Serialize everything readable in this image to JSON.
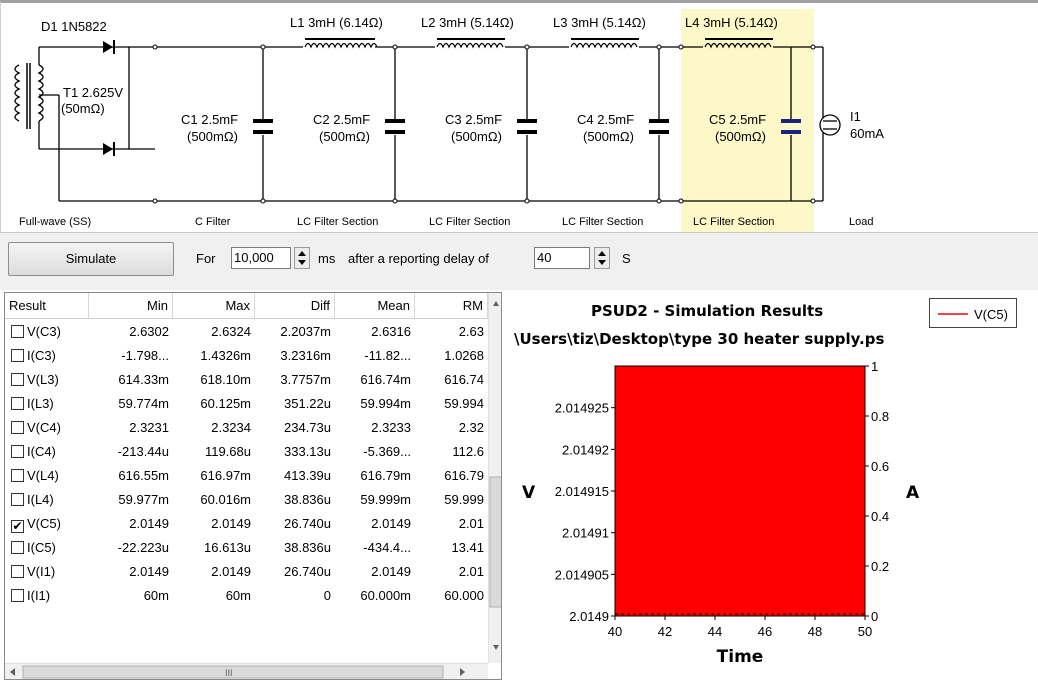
{
  "circuit": {
    "components": {
      "d1": "D1 1N5822",
      "t1_line1": "T1 2.625V",
      "t1_line2": "(50mΩ)",
      "l1": "L1 3mH (6.14Ω)",
      "l2": "L2 3mH (5.14Ω)",
      "l3": "L3 3mH (5.14Ω)",
      "l4": "L4 3mH (5.14Ω)",
      "c1_line1": "C1 2.5mF",
      "c1_line2": "(500mΩ)",
      "c2_line1": "C2 2.5mF",
      "c2_line2": "(500mΩ)",
      "c3_line1": "C3 2.5mF",
      "c3_line2": "(500mΩ)",
      "c4_line1": "C4 2.5mF",
      "c4_line2": "(500mΩ)",
      "c5_line1": "C5 2.5mF",
      "c5_line2": "(500mΩ)",
      "i1_line1": "I1",
      "i1_line2": "60mA"
    },
    "sections": [
      "Full-wave (SS)",
      "C Filter",
      "LC Filter Section",
      "LC Filter Section",
      "LC Filter Section",
      "LC Filter Section",
      "Load"
    ],
    "highlight_color": "#fcf8c8"
  },
  "controls": {
    "simulate_label": "Simulate",
    "for_label": "For",
    "duration_value": "10,000",
    "ms_label": "ms",
    "delay_label": "after a reporting delay of",
    "delay_value": "40",
    "s_label": "S"
  },
  "table": {
    "columns": [
      "Result",
      "Min",
      "Max",
      "Diff",
      "Mean",
      "RM"
    ],
    "rows": [
      {
        "name": "V(C3)",
        "checked": false,
        "min": "2.6302",
        "max": "2.6324",
        "diff": "2.2037m",
        "mean": "2.6316",
        "rms": "2.63"
      },
      {
        "name": "I(C3)",
        "checked": false,
        "min": "-1.798...",
        "max": "1.4326m",
        "diff": "3.2316m",
        "mean": "-11.82...",
        "rms": "1.0268"
      },
      {
        "name": "V(L3)",
        "checked": false,
        "min": "614.33m",
        "max": "618.10m",
        "diff": "3.7757m",
        "mean": "616.74m",
        "rms": "616.74"
      },
      {
        "name": "I(L3)",
        "checked": false,
        "min": "59.774m",
        "max": "60.125m",
        "diff": "351.22u",
        "mean": "59.994m",
        "rms": "59.994"
      },
      {
        "name": "V(C4)",
        "checked": false,
        "min": "2.3231",
        "max": "2.3234",
        "diff": "234.73u",
        "mean": "2.3233",
        "rms": "2.32"
      },
      {
        "name": "I(C4)",
        "checked": false,
        "min": "-213.44u",
        "max": "119.68u",
        "diff": "333.13u",
        "mean": "-5.369...",
        "rms": "112.6"
      },
      {
        "name": "V(L4)",
        "checked": false,
        "min": "616.55m",
        "max": "616.97m",
        "diff": "413.39u",
        "mean": "616.79m",
        "rms": "616.79"
      },
      {
        "name": "I(L4)",
        "checked": false,
        "min": "59.977m",
        "max": "60.016m",
        "diff": "38.836u",
        "mean": "59.999m",
        "rms": "59.999"
      },
      {
        "name": "V(C5)",
        "checked": true,
        "min": "2.0149",
        "max": "2.0149",
        "diff": "26.740u",
        "mean": "2.0149",
        "rms": "2.01"
      },
      {
        "name": "I(C5)",
        "checked": false,
        "min": "-22.223u",
        "max": "16.613u",
        "diff": "38.836u",
        "mean": "-434.4...",
        "rms": "13.41"
      },
      {
        "name": "V(I1)",
        "checked": false,
        "min": "2.0149",
        "max": "2.0149",
        "diff": "26.740u",
        "mean": "2.0149",
        "rms": "2.01"
      },
      {
        "name": "I(I1)",
        "checked": false,
        "min": "60m",
        "max": "60m",
        "diff": "0",
        "mean": "60.000m",
        "rms": "60.000"
      }
    ],
    "scroll_glyph": "III"
  },
  "chart_data": {
    "type": "area",
    "title": "PSUD2 - Simulation Results",
    "subtitle": "\\Users\\tiz\\Desktop\\type 30 heater supply.ps",
    "xlabel": "Time",
    "ylabel": "V",
    "y2label": "A",
    "xlim": [
      40,
      50
    ],
    "ylim": [
      2.0149,
      2.01493
    ],
    "y2lim": [
      0,
      1
    ],
    "x_ticks": [
      "40",
      "42",
      "44",
      "46",
      "48",
      "50"
    ],
    "y_ticks": [
      "2.0149",
      "2.014905",
      "2.01491",
      "2.014915",
      "2.01492",
      "2.014925"
    ],
    "y2_ticks": [
      "0",
      "0.2",
      "0.4",
      "0.6",
      "0.8",
      "1"
    ],
    "series": [
      {
        "name": "V(C5)",
        "color": "#ff0000",
        "y_range": [
          2.0149,
          2.01493
        ]
      }
    ],
    "legend": "top-right"
  }
}
